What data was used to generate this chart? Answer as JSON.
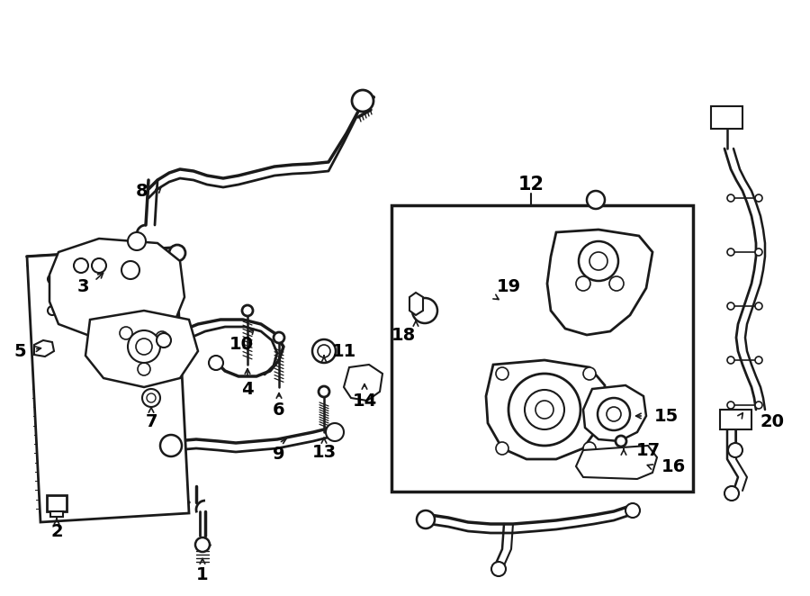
{
  "background_color": "#ffffff",
  "line_color": "#1a1a1a",
  "label_color": "#000000",
  "fig_width": 9.0,
  "fig_height": 6.62,
  "dpi": 100
}
